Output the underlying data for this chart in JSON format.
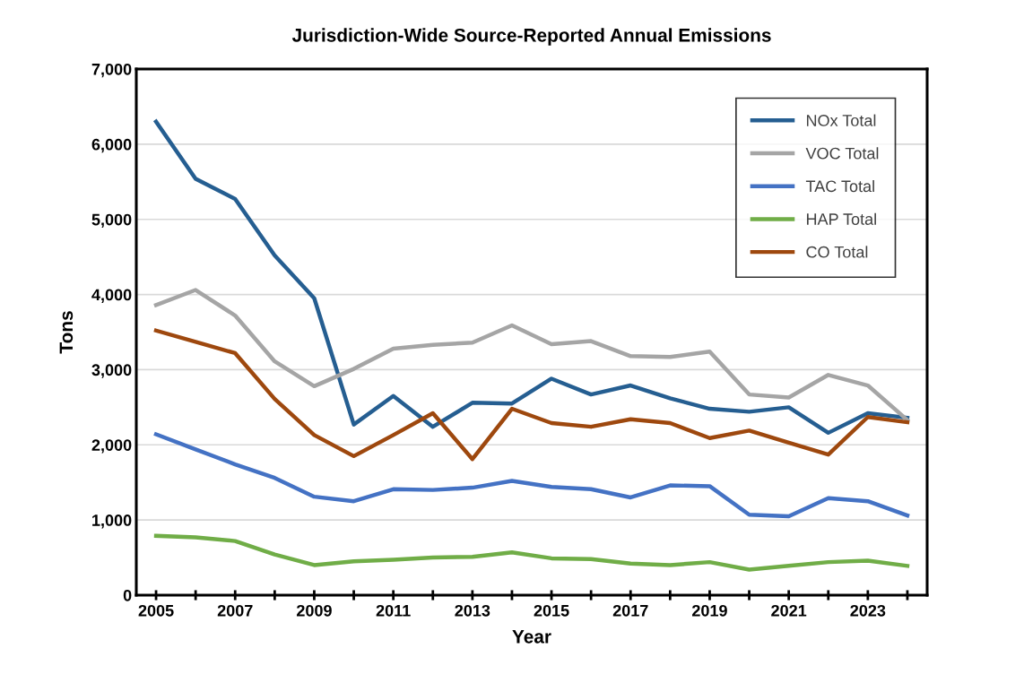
{
  "chart_data": {
    "type": "line",
    "title": "Jurisdiction-Wide Source-Reported Annual Emissions",
    "xlabel": "Year",
    "ylabel": "Tons",
    "x": [
      2005,
      2006,
      2007,
      2008,
      2009,
      2010,
      2011,
      2012,
      2013,
      2014,
      2015,
      2016,
      2017,
      2018,
      2019,
      2020,
      2021,
      2022,
      2023,
      2024
    ],
    "series": [
      {
        "name": "NOx Total",
        "color": "#255e91",
        "values": [
          6300,
          5540,
          5270,
          4520,
          3950,
          2270,
          2650,
          2240,
          2560,
          2550,
          2880,
          2670,
          2790,
          2620,
          2480,
          2440,
          2500,
          2160,
          2420,
          2360
        ]
      },
      {
        "name": "VOC Total",
        "color": "#a5a5a5",
        "values": [
          3860,
          4060,
          3720,
          3110,
          2780,
          3010,
          3280,
          3330,
          3360,
          3590,
          3340,
          3380,
          3180,
          3170,
          3240,
          2670,
          2630,
          2930,
          2790,
          2330
        ]
      },
      {
        "name": "TAC Total",
        "color": "#4472c4",
        "values": [
          2140,
          1940,
          1740,
          1560,
          1310,
          1250,
          1410,
          1400,
          1430,
          1520,
          1440,
          1410,
          1300,
          1460,
          1450,
          1070,
          1050,
          1290,
          1250,
          1060
        ]
      },
      {
        "name": "HAP Total",
        "color": "#70ad47",
        "values": [
          790,
          770,
          720,
          540,
          400,
          450,
          470,
          500,
          510,
          570,
          490,
          480,
          420,
          400,
          440,
          340,
          390,
          440,
          460,
          390
        ]
      },
      {
        "name": "CO Total",
        "color": "#9e480e",
        "values": [
          3520,
          3370,
          3220,
          2610,
          2130,
          1850,
          2130,
          2420,
          1810,
          2480,
          2290,
          2240,
          2340,
          2290,
          2090,
          2190,
          2030,
          1870,
          2370,
          2300
        ]
      }
    ],
    "xlim": [
      2004.5,
      2024.5
    ],
    "xticks": [
      2005,
      {
        "value": 2006,
        "label": null
      },
      2007,
      {
        "value": 2008,
        "label": null
      },
      2009,
      {
        "value": 2010,
        "label": null
      },
      2011,
      {
        "value": 2012,
        "label": null
      },
      2013,
      {
        "value": 2014,
        "label": null
      },
      2015,
      {
        "value": 2016,
        "label": null
      },
      2017,
      {
        "value": 2018,
        "label": null
      },
      2019,
      {
        "value": 2020,
        "label": null
      },
      2021,
      {
        "value": 2022,
        "label": null
      },
      2023,
      {
        "value": 2024,
        "label": null
      }
    ],
    "ylim": [
      0,
      7000
    ],
    "yticks": [
      {
        "value": 0,
        "label": "0"
      },
      {
        "value": 1000,
        "label": "1,000"
      },
      {
        "value": 2000,
        "label": "2,000"
      },
      {
        "value": 3000,
        "label": "3,000"
      },
      {
        "value": 4000,
        "label": "4,000"
      },
      {
        "value": 5000,
        "label": "5,000"
      },
      {
        "value": 6000,
        "label": "6,000"
      },
      {
        "value": 7000,
        "label": "7,000"
      }
    ],
    "grid": "y",
    "legend": "top right",
    "marker": "none",
    "line_style": "solid"
  }
}
